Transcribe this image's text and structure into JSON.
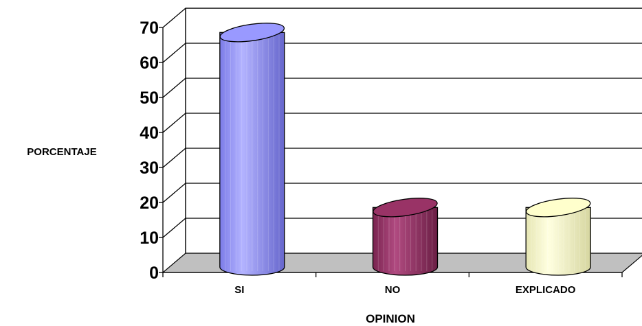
{
  "chart_data": {
    "type": "bar",
    "style": "3d-cylinder",
    "categories": [
      "SI",
      "NO",
      "EXPLICADO"
    ],
    "values": [
      67,
      17,
      17
    ],
    "colors": [
      "#9999ff",
      "#993366",
      "#ffffcc"
    ],
    "xlabel": "OPINION",
    "ylabel": "PORCENTAJE",
    "ylim": [
      0,
      70
    ],
    "yticks": [
      "0",
      "10",
      "20",
      "30",
      "40",
      "50",
      "60",
      "70"
    ],
    "grid": true,
    "floor_color": "#c0c0c0"
  }
}
